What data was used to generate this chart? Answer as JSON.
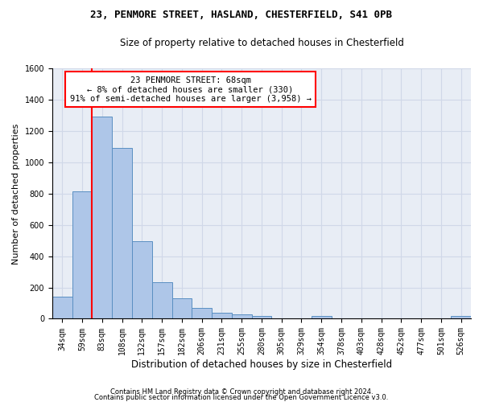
{
  "title": "23, PENMORE STREET, HASLAND, CHESTERFIELD, S41 0PB",
  "subtitle": "Size of property relative to detached houses in Chesterfield",
  "xlabel": "Distribution of detached houses by size in Chesterfield",
  "ylabel": "Number of detached properties",
  "footnote1": "Contains HM Land Registry data © Crown copyright and database right 2024.",
  "footnote2": "Contains public sector information licensed under the Open Government Licence v3.0.",
  "bar_labels": [
    "34sqm",
    "59sqm",
    "83sqm",
    "108sqm",
    "132sqm",
    "157sqm",
    "182sqm",
    "206sqm",
    "231sqm",
    "255sqm",
    "280sqm",
    "305sqm",
    "329sqm",
    "354sqm",
    "378sqm",
    "403sqm",
    "428sqm",
    "452sqm",
    "477sqm",
    "501sqm",
    "526sqm"
  ],
  "bar_values": [
    140,
    815,
    1295,
    1090,
    495,
    235,
    130,
    68,
    40,
    28,
    18,
    0,
    0,
    18,
    0,
    0,
    0,
    0,
    0,
    0,
    18
  ],
  "bar_color": "#aec6e8",
  "bar_edge_color": "#5a8fc2",
  "grid_color": "#d0d8e8",
  "background_color": "#e8edf5",
  "vline_x": 1.5,
  "vline_color": "red",
  "annotation_line1": "23 PENMORE STREET: 68sqm",
  "annotation_line2": "← 8% of detached houses are smaller (330)",
  "annotation_line3": "91% of semi-detached houses are larger (3,958) →",
  "annotation_box_color": "white",
  "annotation_box_edge": "red",
  "ylim": [
    0,
    1600
  ],
  "yticks": [
    0,
    200,
    400,
    600,
    800,
    1000,
    1200,
    1400,
    1600
  ],
  "title_fontsize": 9,
  "subtitle_fontsize": 8.5,
  "ylabel_fontsize": 8,
  "xlabel_fontsize": 8.5,
  "tick_fontsize": 7,
  "annot_fontsize": 7.5,
  "footnote_fontsize": 6
}
